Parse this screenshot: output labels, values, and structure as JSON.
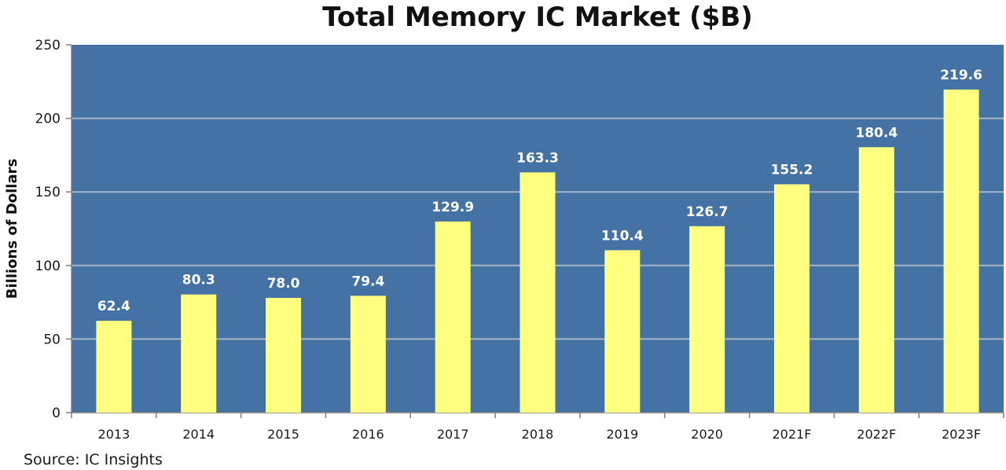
{
  "chart_data": {
    "type": "bar",
    "title": "Total Memory IC Market ($B)",
    "ylabel": "Billions of Dollars",
    "xlabel": "",
    "categories": [
      "2013",
      "2014",
      "2015",
      "2016",
      "2017",
      "2018",
      "2019",
      "2020",
      "2021F",
      "2022F",
      "2023F"
    ],
    "values": [
      62.4,
      80.3,
      78.0,
      79.4,
      129.9,
      163.3,
      110.4,
      126.7,
      155.2,
      180.4,
      219.6
    ],
    "value_labels": [
      "62.4",
      "80.3",
      "78.0",
      "79.4",
      "129.9",
      "163.3",
      "110.4",
      "126.7",
      "155.2",
      "180.4",
      "219.6"
    ],
    "ylim": [
      0,
      250
    ],
    "yticks": [
      "0",
      "50",
      "100",
      "150",
      "200",
      "250"
    ],
    "grid": true,
    "legend": "none",
    "source": "Source:  IC Insights",
    "colors": {
      "plot_background": "#4472a4",
      "bar": "#ffff80",
      "gridline": "#a6b4c6",
      "data_label": "#ffffff"
    }
  }
}
